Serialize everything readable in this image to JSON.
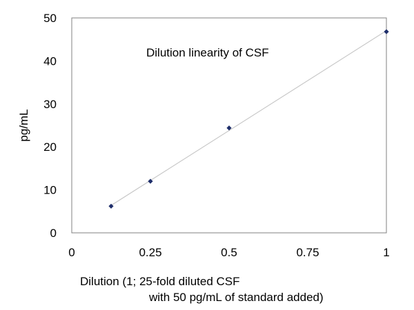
{
  "chart_data": {
    "type": "scatter",
    "title": "Dilution linearity of CSF",
    "xlabel_lines": [
      "Dilution (1; 25-fold diluted CSF",
      "with 50 pg/mL of standard added)"
    ],
    "ylabel": "pg/mL",
    "xlim": [
      0,
      1
    ],
    "ylim": [
      0,
      50
    ],
    "xticks": [
      0,
      0.25,
      0.5,
      0.75,
      1
    ],
    "xtick_labels": [
      "0",
      "0.25",
      "0.5",
      "0.75",
      "1"
    ],
    "yticks": [
      0,
      10,
      20,
      30,
      40,
      50
    ],
    "ytick_labels": [
      "0",
      "10",
      "20",
      "30",
      "40",
      "50"
    ],
    "grid": false,
    "legend": "none",
    "trendline": "linear",
    "marker": "diamond",
    "marker_color": "#1f2f6b",
    "trendline_color": "#c8c8c8",
    "series": [
      {
        "x": [
          0.125,
          0.25,
          0.5,
          1
        ],
        "y": [
          6.2,
          12.0,
          24.4,
          46.8
        ]
      }
    ]
  }
}
